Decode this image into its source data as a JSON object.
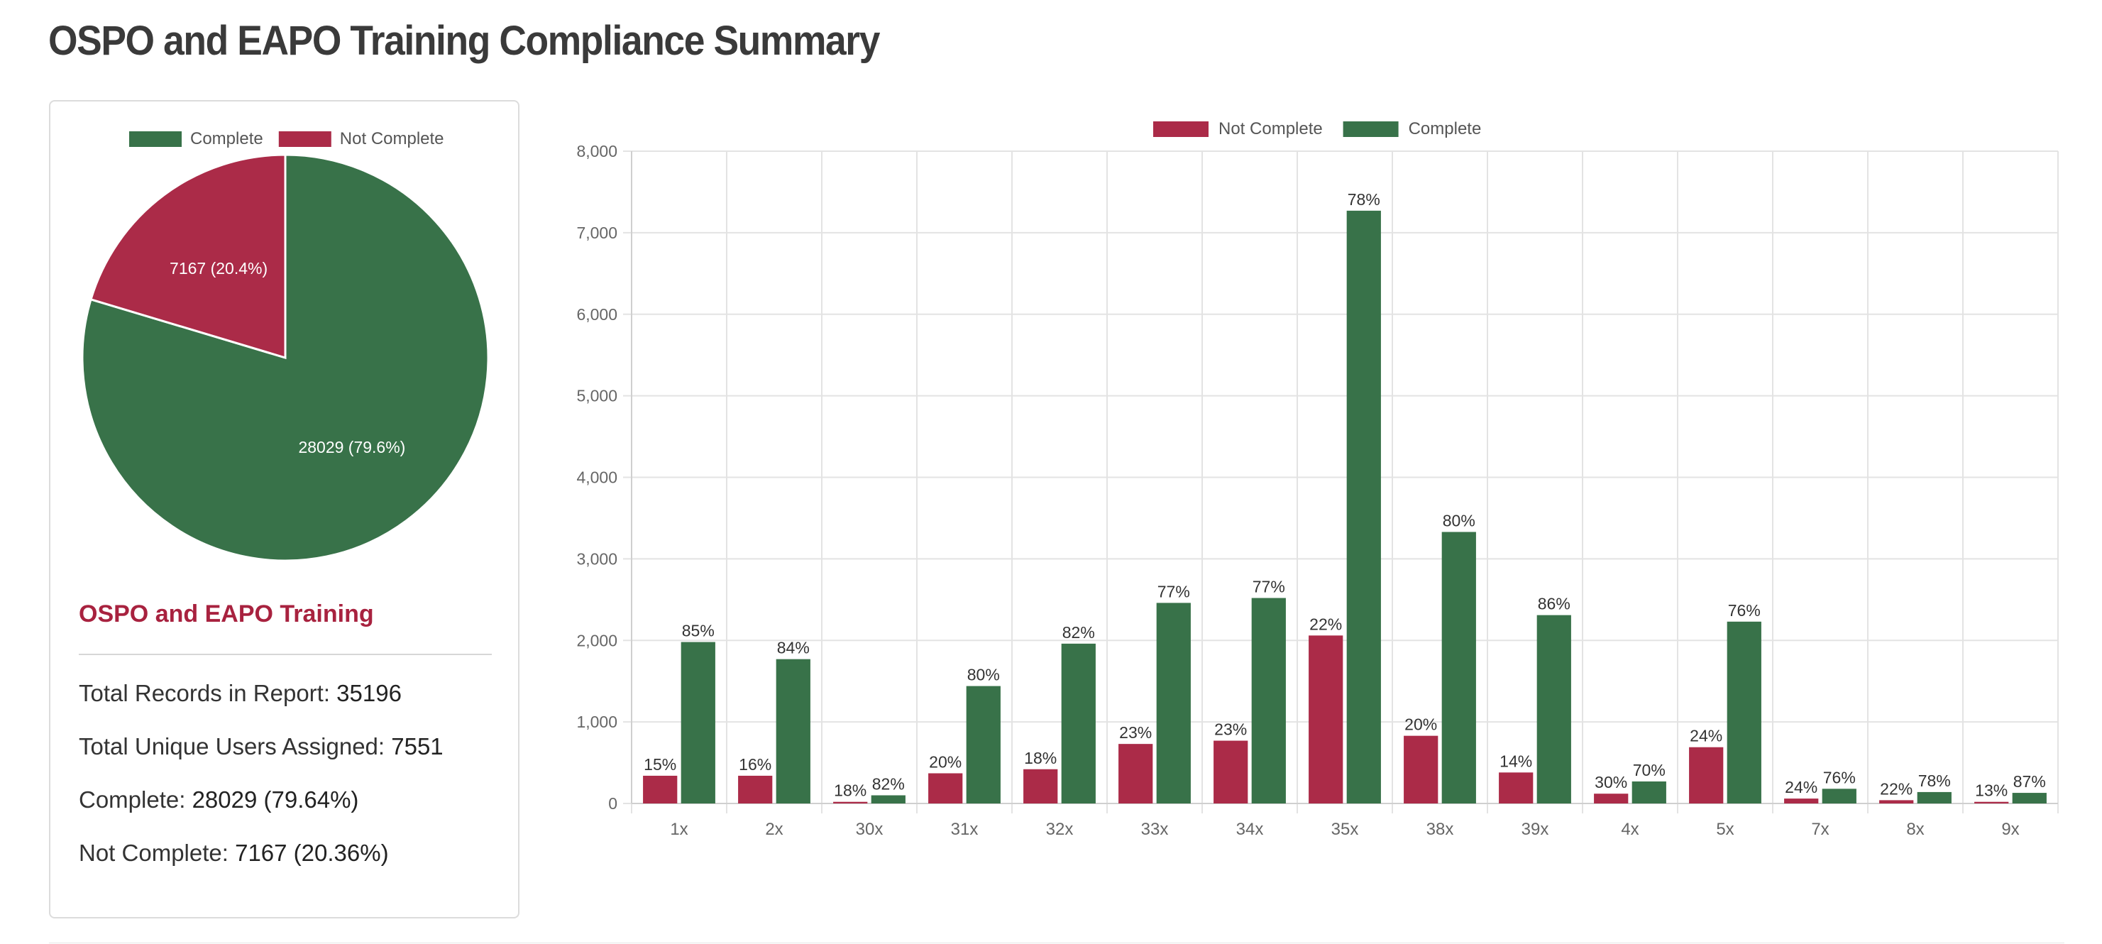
{
  "page": {
    "title": "OSPO and EAPO Training Compliance Summary"
  },
  "colors": {
    "complete": "#387249",
    "not_complete": "#ab2b48",
    "accent_title": "#a8223f"
  },
  "summary": {
    "heading": "OSPO and EAPO Training",
    "total_records_label": "Total Records in Report: ",
    "total_records_value": "35196",
    "unique_users_label": "Total Unique Users Assigned: ",
    "unique_users_value": "7551",
    "complete_label": "Complete: ",
    "complete_value": "28029 (79.64%)",
    "not_complete_label": "Not Complete: ",
    "not_complete_value": "7167 (20.36%)"
  },
  "chart_data": [
    {
      "type": "pie",
      "legend": [
        "Complete",
        "Not Complete"
      ],
      "legend_position": "top",
      "slices": [
        {
          "name": "Complete",
          "value": 28029,
          "label": "28029 (79.6%)"
        },
        {
          "name": "Not Complete",
          "value": 7167,
          "label": "7167 (20.4%)"
        }
      ]
    },
    {
      "type": "bar",
      "title": "",
      "xlabel": "",
      "ylabel": "",
      "ylim": [
        0,
        8000
      ],
      "yticks": [
        "0",
        "1,000",
        "2,000",
        "3,000",
        "4,000",
        "5,000",
        "6,000",
        "7,000",
        "8,000"
      ],
      "grid": true,
      "legend_position": "top",
      "categories": [
        "1x",
        "2x",
        "30x",
        "31x",
        "32x",
        "33x",
        "34x",
        "35x",
        "38x",
        "39x",
        "4x",
        "5x",
        "7x",
        "8x",
        "9x"
      ],
      "series": [
        {
          "name": "Not Complete",
          "values": [
            340,
            340,
            20,
            370,
            420,
            730,
            770,
            2060,
            830,
            380,
            120,
            690,
            60,
            40,
            20
          ],
          "labels": [
            "15%",
            "16%",
            "18%",
            "20%",
            "18%",
            "23%",
            "23%",
            "22%",
            "20%",
            "14%",
            "30%",
            "24%",
            "24%",
            "22%",
            "13%"
          ]
        },
        {
          "name": "Complete",
          "values": [
            1980,
            1770,
            100,
            1440,
            1960,
            2460,
            2520,
            7270,
            3330,
            2310,
            270,
            2230,
            180,
            140,
            130
          ],
          "labels": [
            "85%",
            "84%",
            "82%",
            "80%",
            "82%",
            "77%",
            "77%",
            "78%",
            "80%",
            "86%",
            "70%",
            "76%",
            "76%",
            "78%",
            "87%"
          ]
        }
      ]
    }
  ]
}
